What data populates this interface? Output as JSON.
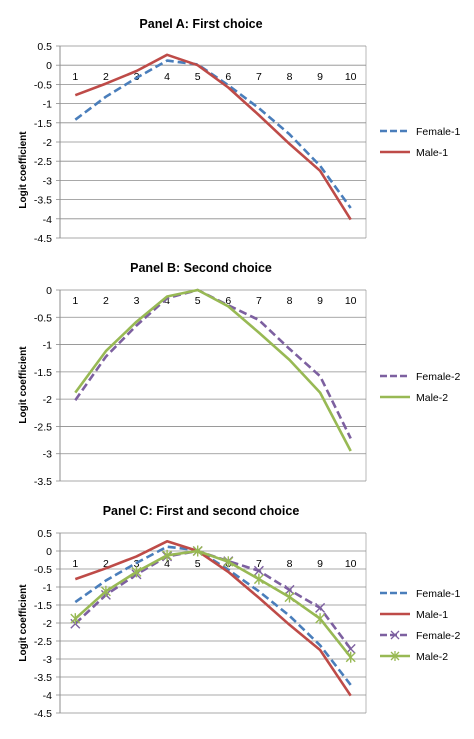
{
  "chart_data": [
    {
      "type": "line",
      "title": "Panel A: First choice",
      "ylabel": "Logit coefficient",
      "xlabel": "",
      "categories": [
        "1",
        "2",
        "3",
        "4",
        "5",
        "6",
        "7",
        "8",
        "9",
        "10"
      ],
      "ylim": [
        -4.5,
        0.5
      ],
      "yticks": [
        "0.5",
        "0",
        "-0.5",
        "-1",
        "-1.5",
        "-2",
        "-2.5",
        "-3",
        "-3.5",
        "-4",
        "-4.5"
      ],
      "grid": true,
      "legend": "right",
      "series": [
        {
          "name": "Female-1",
          "color": "#4a7ebb",
          "style": "dashed",
          "marker": "none",
          "values": [
            -1.42,
            -0.82,
            -0.33,
            0.12,
            0.02,
            -0.52,
            -1.12,
            -1.8,
            -2.62,
            -3.72
          ]
        },
        {
          "name": "Male-1",
          "color": "#be4b48",
          "style": "solid",
          "marker": "none",
          "values": [
            -0.78,
            -0.48,
            -0.15,
            0.27,
            0.0,
            -0.58,
            -1.3,
            -2.05,
            -2.75,
            -4.02
          ]
        }
      ]
    },
    {
      "type": "line",
      "title": "Panel B: Second choice",
      "ylabel": "Logit coefficient",
      "xlabel": "",
      "categories": [
        "1",
        "2",
        "3",
        "4",
        "5",
        "6",
        "7",
        "8",
        "9",
        "10"
      ],
      "ylim": [
        -3.5,
        0
      ],
      "yticks": [
        "0",
        "-0.5",
        "-1",
        "-1.5",
        "-2",
        "-2.5",
        "-3",
        "-3.5"
      ],
      "grid": true,
      "legend": "right",
      "series": [
        {
          "name": "Female-2",
          "color": "#7d60a0",
          "style": "dashed",
          "marker": "none",
          "values": [
            -2.02,
            -1.22,
            -0.65,
            -0.15,
            0.0,
            -0.28,
            -0.55,
            -1.08,
            -1.58,
            -2.72
          ]
        },
        {
          "name": "Male-2",
          "color": "#98b954",
          "style": "solid",
          "marker": "none",
          "values": [
            -1.88,
            -1.12,
            -0.58,
            -0.12,
            0.0,
            -0.3,
            -0.78,
            -1.28,
            -1.88,
            -2.95
          ]
        }
      ]
    },
    {
      "type": "line",
      "title": "Panel C: First and second choice",
      "ylabel": "Logit coefficient",
      "xlabel": "",
      "categories": [
        "1",
        "2",
        "3",
        "4",
        "5",
        "6",
        "7",
        "8",
        "9",
        "10"
      ],
      "ylim": [
        -4.5,
        0.5
      ],
      "yticks": [
        "0.5",
        "0",
        "-0.5",
        "-1",
        "-1.5",
        "-2",
        "-2.5",
        "-3",
        "-3.5",
        "-4",
        "-4.5"
      ],
      "grid": true,
      "legend": "right",
      "series": [
        {
          "name": "Female-1",
          "color": "#4a7ebb",
          "style": "dashed",
          "marker": "none",
          "values": [
            -1.42,
            -0.82,
            -0.33,
            0.12,
            0.02,
            -0.52,
            -1.12,
            -1.8,
            -2.62,
            -3.72
          ]
        },
        {
          "name": "Male-1",
          "color": "#be4b48",
          "style": "solid",
          "marker": "none",
          "values": [
            -0.78,
            -0.48,
            -0.15,
            0.27,
            0.0,
            -0.58,
            -1.3,
            -2.05,
            -2.75,
            -4.02
          ]
        },
        {
          "name": "Female-2",
          "color": "#7d60a0",
          "style": "dashed",
          "marker": "x",
          "values": [
            -2.02,
            -1.22,
            -0.65,
            -0.15,
            0.0,
            -0.28,
            -0.55,
            -1.08,
            -1.58,
            -2.72
          ]
        },
        {
          "name": "Male-2",
          "color": "#98b954",
          "style": "solid",
          "marker": "star",
          "values": [
            -1.88,
            -1.12,
            -0.58,
            -0.12,
            0.0,
            -0.3,
            -0.78,
            -1.28,
            -1.88,
            -2.95
          ]
        }
      ]
    }
  ]
}
